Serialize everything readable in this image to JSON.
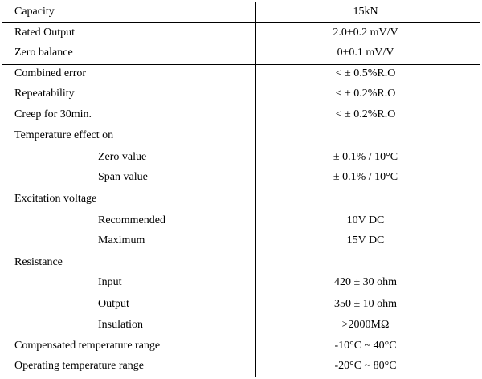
{
  "table": {
    "sections": [
      {
        "rows": [
          {
            "label": "Capacity",
            "value": "15kN"
          }
        ]
      },
      {
        "rows": [
          {
            "label": "Rated Output",
            "value": "2.0±0.2 mV/V"
          },
          {
            "label": "Zero balance",
            "value": "0±0.1 mV/V"
          }
        ]
      },
      {
        "rows": [
          {
            "label": "Combined error",
            "value": "< ± 0.5%R.O"
          },
          {
            "label": "Repeatability",
            "value": "< ± 0.2%R.O"
          },
          {
            "label": "Creep for 30min.",
            "value": "< ± 0.2%R.O"
          },
          {
            "label": "Temperature effect on"
          },
          {
            "label": "Zero value",
            "value": "± 0.1% / 10°C"
          },
          {
            "label": "Span value",
            "value": "± 0.1% / 10°C"
          }
        ]
      },
      {
        "rows": [
          {
            "label": "Excitation voltage"
          },
          {
            "label": "Recommended",
            "value": "10V DC"
          },
          {
            "label": "Maximum",
            "value": "15V DC"
          },
          {
            "label": "Resistance"
          },
          {
            "label": "Input",
            "value": "420 ± 30 ohm"
          },
          {
            "label": "Output",
            "value": "350 ± 10 ohm"
          },
          {
            "label": "Insulation",
            "value": ">2000MΩ"
          }
        ]
      },
      {
        "rows": [
          {
            "label": "Compensated temperature range",
            "value": "-10°C ~ 40°C"
          },
          {
            "label": "Operating temperature range",
            "value": "-20°C ~ 80°C"
          }
        ]
      }
    ]
  }
}
